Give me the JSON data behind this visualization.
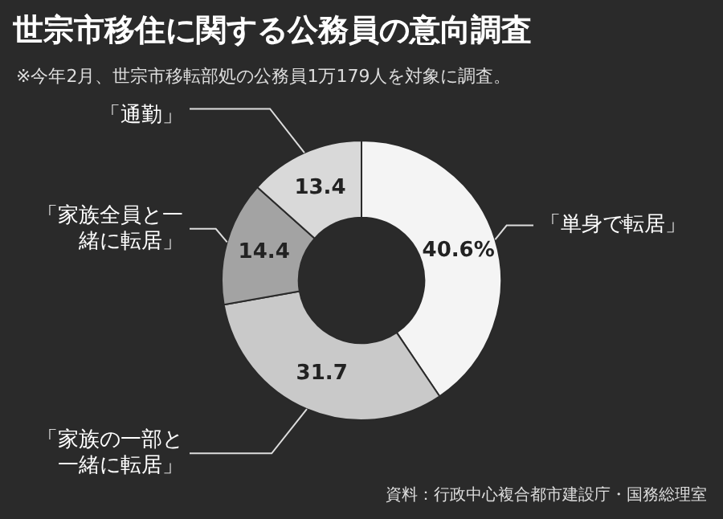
{
  "chart_data": {
    "type": "donut",
    "title": "世宗市移住に関する公務員の意向調査",
    "subtitle": "※今年2月、世宗市移転部処の公務員1万179人を対象に調査。",
    "categories": [
      "「単身で転居」",
      "「家族の一部と一緒に転居」",
      "「家族全員と一緒に転居」",
      "「通勤」"
    ],
    "values": [
      40.6,
      31.7,
      14.4,
      13.4
    ],
    "colors": [
      "#f4f4f4",
      "#c9c9c9",
      "#a3a3a3",
      "#d9d9d9"
    ],
    "value_labels": [
      "40.6%",
      "31.7",
      "14.4",
      "13.4"
    ],
    "legend": false,
    "annotations": [
      "資料：行政中心複合都市建設庁・国務総理室"
    ]
  }
}
